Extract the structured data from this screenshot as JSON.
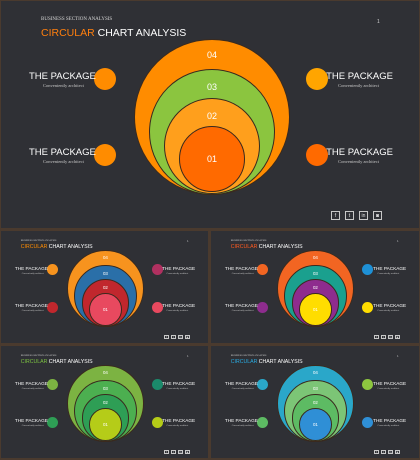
{
  "slides": [
    {
      "supertitle": "BUSINESS SECTION ANALYSIS",
      "title_accent": "CIRCULAR",
      "title_rest": " CHART ANALYSIS",
      "page_number": "1",
      "accent_color": "#ff7f0e",
      "rings": [
        {
          "label": "04",
          "color": "#ff8c00"
        },
        {
          "label": "03",
          "color": "#8bc53f"
        },
        {
          "label": "02",
          "color": "#ff9f1c"
        },
        {
          "label": "01",
          "color": "#ff6a00"
        }
      ],
      "items": [
        {
          "title": "THE PACKAGE",
          "subtitle": "Conveniently architect",
          "color": "#ff8c00"
        },
        {
          "title": "THE PACKAGE",
          "subtitle": "Conveniently architect",
          "color": "#ff8c00"
        },
        {
          "title": "THE PACKAGE",
          "subtitle": "Conveniently architect",
          "color": "#ffa500"
        },
        {
          "title": "THE PACKAGE",
          "subtitle": "Conveniently architect",
          "color": "#ff6a00"
        }
      ],
      "social": [
        {
          "icon": "facebook-icon",
          "glyph": "f"
        },
        {
          "icon": "twitter-icon",
          "glyph": "t"
        },
        {
          "icon": "linkedin-icon",
          "glyph": "in"
        },
        {
          "icon": "instagram-icon",
          "glyph": "◙"
        }
      ]
    },
    {
      "supertitle": "BUSINESS SECTION ANALYSIS",
      "title_accent": "CIRCULAR",
      "title_rest": " CHART ANALYSIS",
      "page_number": "1",
      "accent_color": "#ff8c00",
      "rings": [
        {
          "label": "04",
          "color": "#f7931e"
        },
        {
          "label": "03",
          "color": "#2a6fa8"
        },
        {
          "label": "02",
          "color": "#c1272d"
        },
        {
          "label": "01",
          "color": "#e8495f"
        }
      ],
      "items": [
        {
          "title": "THE PACKAGE",
          "subtitle": "Conveniently architect",
          "color": "#f7931e"
        },
        {
          "title": "THE PACKAGE",
          "subtitle": "Conveniently architect",
          "color": "#c1272d"
        },
        {
          "title": "THE PACKAGE",
          "subtitle": "Conveniently architect",
          "color": "#b03060"
        },
        {
          "title": "THE PACKAGE",
          "subtitle": "Conveniently architect",
          "color": "#e8495f"
        }
      ],
      "social": [
        {
          "icon": "facebook-icon",
          "glyph": "f"
        },
        {
          "icon": "twitter-icon",
          "glyph": "t"
        },
        {
          "icon": "linkedin-icon",
          "glyph": "in"
        },
        {
          "icon": "instagram-icon",
          "glyph": "◙"
        }
      ]
    },
    {
      "supertitle": "BUSINESS SECTION ANALYSIS",
      "title_accent": "CIRCULAR",
      "title_rest": " CHART ANALYSIS",
      "page_number": "1",
      "accent_color": "#ff5a1f",
      "rings": [
        {
          "label": "04",
          "color": "#f26522"
        },
        {
          "label": "03",
          "color": "#1aa08e"
        },
        {
          "label": "02",
          "color": "#8e2c8e"
        },
        {
          "label": "01",
          "color": "#ffdd00"
        }
      ],
      "items": [
        {
          "title": "THE PACKAGE",
          "subtitle": "Conveniently architect",
          "color": "#f26522"
        },
        {
          "title": "THE PACKAGE",
          "subtitle": "Conveniently architect",
          "color": "#8e2c8e"
        },
        {
          "title": "THE PACKAGE",
          "subtitle": "Conveniently architect",
          "color": "#1e90d6"
        },
        {
          "title": "THE PACKAGE",
          "subtitle": "Conveniently architect",
          "color": "#ffdd00"
        }
      ],
      "social": [
        {
          "icon": "facebook-icon",
          "glyph": "f"
        },
        {
          "icon": "twitter-icon",
          "glyph": "t"
        },
        {
          "icon": "linkedin-icon",
          "glyph": "in"
        },
        {
          "icon": "instagram-icon",
          "glyph": "◙"
        }
      ]
    },
    {
      "supertitle": "BUSINESS SECTION ANALYSIS",
      "title_accent": "CIRCULAR",
      "title_rest": " CHART ANALYSIS",
      "page_number": "1",
      "accent_color": "#7cc242",
      "rings": [
        {
          "label": "04",
          "color": "#7cb342"
        },
        {
          "label": "03",
          "color": "#4caf50"
        },
        {
          "label": "02",
          "color": "#2e9e55"
        },
        {
          "label": "01",
          "color": "#b5cc18"
        }
      ],
      "items": [
        {
          "title": "THE PACKAGE",
          "subtitle": "Conveniently architect",
          "color": "#7cb342"
        },
        {
          "title": "THE PACKAGE",
          "subtitle": "Conveniently architect",
          "color": "#2e9e55"
        },
        {
          "title": "THE PACKAGE",
          "subtitle": "Conveniently architect",
          "color": "#1b8a6b"
        },
        {
          "title": "THE PACKAGE",
          "subtitle": "Conveniently architect",
          "color": "#b5cc18"
        }
      ],
      "social": [
        {
          "icon": "facebook-icon",
          "glyph": "f"
        },
        {
          "icon": "twitter-icon",
          "glyph": "t"
        },
        {
          "icon": "linkedin-icon",
          "glyph": "in"
        },
        {
          "icon": "instagram-icon",
          "glyph": "◙"
        }
      ]
    },
    {
      "supertitle": "BUSINESS SECTION ANALYSIS",
      "title_accent": "CIRCULAR",
      "title_rest": " CHART ANALYSIS",
      "page_number": "1",
      "accent_color": "#29abe2",
      "rings": [
        {
          "label": "04",
          "color": "#2aa7c9"
        },
        {
          "label": "03",
          "color": "#7cc576"
        },
        {
          "label": "02",
          "color": "#5dbb63"
        },
        {
          "label": "01",
          "color": "#2f8fd6"
        }
      ],
      "items": [
        {
          "title": "THE PACKAGE",
          "subtitle": "Conveniently architect",
          "color": "#2aa7c9"
        },
        {
          "title": "THE PACKAGE",
          "subtitle": "Conveniently architect",
          "color": "#5dbb63"
        },
        {
          "title": "THE PACKAGE",
          "subtitle": "Conveniently architect",
          "color": "#8dc63f"
        },
        {
          "title": "THE PACKAGE",
          "subtitle": "Conveniently architect",
          "color": "#2f8fd6"
        }
      ],
      "social": [
        {
          "icon": "facebook-icon",
          "glyph": "f"
        },
        {
          "icon": "twitter-icon",
          "glyph": "t"
        },
        {
          "icon": "linkedin-icon",
          "glyph": "in"
        },
        {
          "icon": "instagram-icon",
          "glyph": "◙"
        }
      ]
    }
  ]
}
